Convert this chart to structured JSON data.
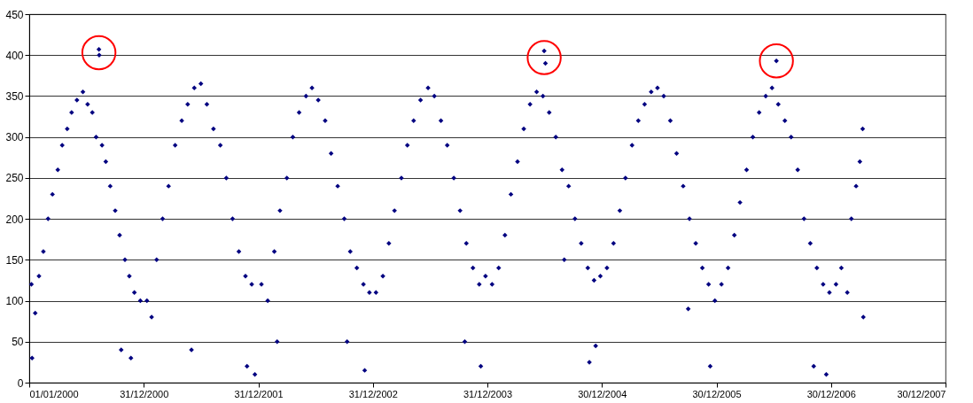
{
  "chart_data": {
    "type": "scatter",
    "grid": "y",
    "xlim": [
      "2000-01-01",
      "2007-12-30"
    ],
    "xticks": [
      {
        "value": "2000-01-01",
        "label": "01/01/2000"
      },
      {
        "value": "2000-12-31",
        "label": "31/12/2000"
      },
      {
        "value": "2001-12-31",
        "label": "31/12/2001"
      },
      {
        "value": "2002-12-31",
        "label": "31/12/2002"
      },
      {
        "value": "2003-12-31",
        "label": "31/12/2003"
      },
      {
        "value": "2004-12-30",
        "label": "30/12/2004"
      },
      {
        "value": "2005-12-30",
        "label": "30/12/2005"
      },
      {
        "value": "2006-12-30",
        "label": "30/12/2006"
      },
      {
        "value": "2007-12-30",
        "label": "30/12/2007"
      }
    ],
    "ylim": [
      0,
      450
    ],
    "yticks": [
      0,
      50,
      100,
      150,
      200,
      250,
      300,
      350,
      400,
      450
    ],
    "series": [
      {
        "color": "#000080",
        "marker": "diamond",
        "x": [
          "2000-08-10",
          "2000-08-11",
          "2004-06-29",
          "2006-07-09",
          "2000-01-08",
          "2000-01-10",
          "2000-01-20",
          "2000-02-01",
          "2000-02-15",
          "2000-03-01",
          "2000-03-15",
          "2000-04-01",
          "2000-04-15",
          "2000-05-01",
          "2000-05-15",
          "2000-06-01",
          "2000-06-20",
          "2000-07-05",
          "2000-07-20",
          "2000-08-01",
          "2000-08-20",
          "2000-09-01",
          "2000-09-15",
          "2000-10-01",
          "2000-10-15",
          "2000-10-20",
          "2000-11-01",
          "2000-11-15",
          "2000-11-20",
          "2000-12-01",
          "2000-12-20",
          "2001-01-10",
          "2001-01-25",
          "2001-02-10",
          "2001-03-01",
          "2001-03-20",
          "2001-04-10",
          "2001-05-01",
          "2001-05-20",
          "2001-06-01",
          "2001-06-10",
          "2001-07-01",
          "2001-07-20",
          "2001-08-10",
          "2001-09-01",
          "2001-09-20",
          "2001-10-10",
          "2001-10-30",
          "2001-11-20",
          "2001-11-25",
          "2001-12-10",
          "2001-12-20",
          "2002-01-10",
          "2002-01-30",
          "2002-02-20",
          "2002-03-01",
          "2002-03-10",
          "2002-04-01",
          "2002-04-20",
          "2002-05-10",
          "2002-06-01",
          "2002-06-20",
          "2002-07-10",
          "2002-08-01",
          "2002-08-20",
          "2002-09-10",
          "2002-10-01",
          "2002-10-10",
          "2002-10-20",
          "2002-11-10",
          "2002-12-01",
          "2002-12-05",
          "2002-12-20",
          "2003-01-10",
          "2003-02-01",
          "2003-02-20",
          "2003-03-10",
          "2003-04-01",
          "2003-04-20",
          "2003-05-10",
          "2003-06-01",
          "2003-06-25",
          "2003-07-15",
          "2003-08-05",
          "2003-08-25",
          "2003-09-15",
          "2003-10-05",
          "2003-10-20",
          "2003-10-25",
          "2003-11-15",
          "2003-12-05",
          "2003-12-10",
          "2003-12-25",
          "2004-01-15",
          "2004-02-05",
          "2004-02-25",
          "2004-03-15",
          "2004-04-05",
          "2004-04-25",
          "2004-05-15",
          "2004-06-05",
          "2004-06-25",
          "2004-07-03",
          "2004-07-15",
          "2004-08-05",
          "2004-08-25",
          "2004-09-01",
          "2004-09-15",
          "2004-10-05",
          "2004-10-25",
          "2004-11-15",
          "2004-11-20",
          "2004-12-05",
          "2004-12-10",
          "2004-12-25",
          "2005-01-15",
          "2005-02-05",
          "2005-02-25",
          "2005-03-15",
          "2005-04-05",
          "2005-04-25",
          "2005-05-15",
          "2005-06-05",
          "2005-06-25",
          "2005-07-15",
          "2005-08-05",
          "2005-08-25",
          "2005-09-15",
          "2005-10-01",
          "2005-10-05",
          "2005-10-25",
          "2005-11-15",
          "2005-12-05",
          "2005-12-10",
          "2005-12-25",
          "2006-01-15",
          "2006-02-05",
          "2006-02-25",
          "2006-03-15",
          "2006-04-05",
          "2006-04-25",
          "2006-05-15",
          "2006-06-05",
          "2006-06-25",
          "2006-07-15",
          "2006-08-05",
          "2006-08-25",
          "2006-09-15",
          "2006-10-05",
          "2006-10-25",
          "2006-11-05",
          "2006-11-15",
          "2006-12-05",
          "2006-12-15",
          "2006-12-25",
          "2007-01-15",
          "2007-02-01",
          "2007-02-20",
          "2007-03-05",
          "2007-03-20",
          "2007-04-01",
          "2007-04-10",
          "2007-04-12"
        ],
        "values": [
          407,
          400,
          405,
          393,
          120,
          30,
          85,
          130,
          160,
          200,
          230,
          260,
          290,
          310,
          330,
          345,
          355,
          340,
          330,
          300,
          290,
          270,
          240,
          210,
          180,
          40,
          150,
          130,
          30,
          110,
          100,
          100,
          80,
          150,
          200,
          240,
          290,
          320,
          340,
          40,
          360,
          365,
          340,
          310,
          290,
          250,
          200,
          160,
          130,
          20,
          120,
          10,
          120,
          100,
          160,
          50,
          210,
          250,
          300,
          330,
          350,
          360,
          345,
          320,
          280,
          240,
          200,
          50,
          160,
          140,
          120,
          15,
          110,
          110,
          130,
          170,
          210,
          250,
          290,
          320,
          345,
          360,
          350,
          320,
          290,
          250,
          210,
          50,
          170,
          140,
          120,
          20,
          130,
          120,
          140,
          180,
          230,
          270,
          310,
          340,
          355,
          350,
          390,
          330,
          300,
          260,
          150,
          240,
          200,
          170,
          140,
          25,
          125,
          45,
          130,
          140,
          170,
          210,
          250,
          290,
          320,
          340,
          355,
          360,
          350,
          320,
          280,
          240,
          90,
          200,
          170,
          140,
          120,
          20,
          100,
          120,
          140,
          180,
          220,
          260,
          300,
          330,
          350,
          360,
          340,
          320,
          300,
          260,
          200,
          170,
          20,
          140,
          120,
          10,
          110,
          120,
          140,
          110,
          200,
          240,
          270,
          310,
          80
        ]
      },
      {
        "color": "#ff0000",
        "marker": "circle",
        "x": [
          "2000-08-10",
          "2004-06-29",
          "2006-07-09"
        ],
        "values": [
          403,
          397,
          393
        ]
      }
    ]
  }
}
